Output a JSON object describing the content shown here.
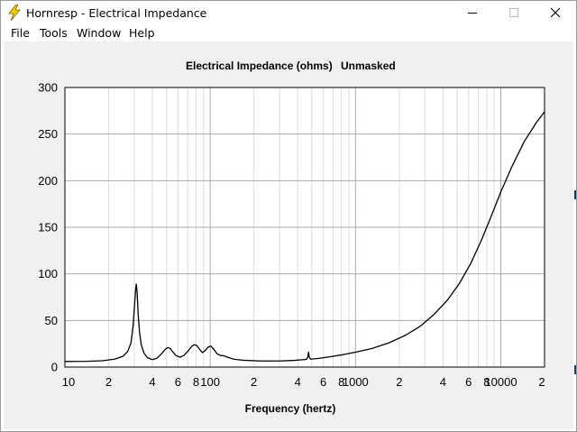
{
  "window": {
    "title": "Hornresp - Electrical Impedance",
    "icon": "lightning-bolt-icon",
    "controls": [
      "minimize-icon",
      "maximize-icon",
      "close-icon"
    ]
  },
  "menu": {
    "items": [
      {
        "label": "File"
      },
      {
        "label": "Tools"
      },
      {
        "label": "Window"
      },
      {
        "label": "Help"
      }
    ]
  },
  "chart_data": {
    "type": "line",
    "title": "Electrical Impedance (ohms)",
    "subtitle": "Unmasked",
    "xlabel": "Frequency (hertz)",
    "ylabel": "",
    "x_scale": "log",
    "xlim": [
      10,
      20000
    ],
    "ylim": [
      0,
      300
    ],
    "grid": true,
    "y_ticks": [
      0,
      50,
      100,
      150,
      200,
      250,
      300
    ],
    "x_ticks": [
      {
        "value": 10,
        "label": "10"
      },
      {
        "value": 20,
        "label": "2"
      },
      {
        "value": 40,
        "label": "4"
      },
      {
        "value": 60,
        "label": "6"
      },
      {
        "value": 80,
        "label": "8"
      },
      {
        "value": 100,
        "label": "100"
      },
      {
        "value": 200,
        "label": "2"
      },
      {
        "value": 400,
        "label": "4"
      },
      {
        "value": 600,
        "label": "6"
      },
      {
        "value": 800,
        "label": "8"
      },
      {
        "value": 1000,
        "label": "1000"
      },
      {
        "value": 2000,
        "label": "2"
      },
      {
        "value": 4000,
        "label": "4"
      },
      {
        "value": 6000,
        "label": "6"
      },
      {
        "value": 8000,
        "label": "8"
      },
      {
        "value": 10000,
        "label": "10000"
      },
      {
        "value": 20000,
        "label": "2"
      }
    ],
    "series": [
      {
        "color": "#000000",
        "points": [
          [
            10,
            6.0
          ],
          [
            14,
            6.2
          ],
          [
            18,
            6.8
          ],
          [
            22,
            8.5
          ],
          [
            25,
            11.5
          ],
          [
            27,
            16.5
          ],
          [
            28.5,
            26
          ],
          [
            29.5,
            45
          ],
          [
            30.2,
            68
          ],
          [
            30.7,
            84
          ],
          [
            31.0,
            89
          ],
          [
            31.4,
            80
          ],
          [
            31.9,
            58
          ],
          [
            32.6,
            38
          ],
          [
            33.5,
            24
          ],
          [
            35,
            15
          ],
          [
            37,
            10
          ],
          [
            40,
            8
          ],
          [
            43,
            9.5
          ],
          [
            46,
            14
          ],
          [
            49,
            19
          ],
          [
            51,
            21
          ],
          [
            53,
            20
          ],
          [
            55.5,
            16
          ],
          [
            58,
            12.5
          ],
          [
            62,
            10.5
          ],
          [
            66,
            12.5
          ],
          [
            71,
            18
          ],
          [
            75,
            22.5
          ],
          [
            78,
            24
          ],
          [
            81,
            23
          ],
          [
            85,
            18.5
          ],
          [
            88.5,
            15.5
          ],
          [
            92,
            17.5
          ],
          [
            97,
            21.5
          ],
          [
            101,
            22.5
          ],
          [
            106,
            19
          ],
          [
            111,
            14.5
          ],
          [
            117,
            12.5
          ],
          [
            125,
            12
          ],
          [
            132,
            10.5
          ],
          [
            145,
            8.5
          ],
          [
            170,
            7.3
          ],
          [
            220,
            6.5
          ],
          [
            300,
            6.5
          ],
          [
            380,
            7.2
          ],
          [
            440,
            8.0
          ],
          [
            460,
            8.3
          ],
          [
            470,
            11
          ],
          [
            475,
            16
          ],
          [
            480,
            11
          ],
          [
            490,
            8.5
          ],
          [
            550,
            9.2
          ],
          [
            650,
            10.8
          ],
          [
            800,
            13
          ],
          [
            1000,
            16
          ],
          [
            1300,
            20
          ],
          [
            1700,
            26
          ],
          [
            2200,
            34
          ],
          [
            2800,
            44
          ],
          [
            3500,
            57
          ],
          [
            4300,
            72
          ],
          [
            5200,
            90
          ],
          [
            6200,
            111
          ],
          [
            7300,
            135
          ],
          [
            8500,
            160
          ],
          [
            10000,
            188
          ],
          [
            12000,
            216
          ],
          [
            14500,
            242
          ],
          [
            17500,
            262
          ],
          [
            20000,
            274
          ]
        ]
      }
    ]
  }
}
